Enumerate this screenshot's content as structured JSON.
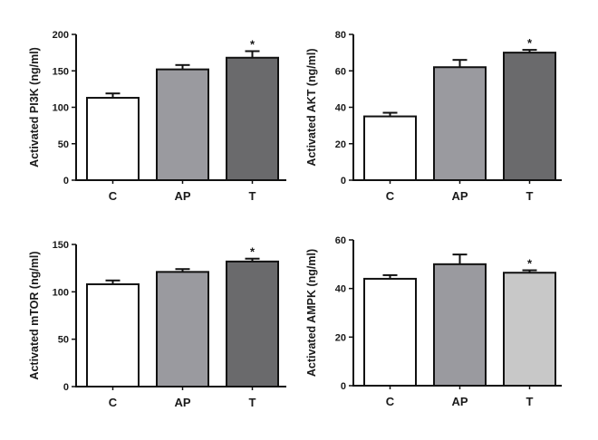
{
  "chart_data": [
    {
      "type": "bar",
      "ylabel": "Activated PI3K (ng/ml)",
      "categories": [
        "C",
        "AP",
        "T"
      ],
      "values": [
        113,
        152,
        168
      ],
      "errors": [
        6,
        6,
        9
      ],
      "significance": [
        "",
        "",
        "*"
      ],
      "colors": [
        "#ffffff",
        "#9a9a9f",
        "#6a6a6c"
      ],
      "ylim": [
        0,
        200
      ],
      "yticks": [
        "0",
        "50",
        "100",
        "150",
        "200"
      ]
    },
    {
      "type": "bar",
      "ylabel": "Activated AKT (ng/ml)",
      "categories": [
        "C",
        "AP",
        "T"
      ],
      "values": [
        35,
        62,
        70
      ],
      "errors": [
        2,
        4,
        1.5
      ],
      "significance": [
        "",
        "",
        "*"
      ],
      "colors": [
        "#ffffff",
        "#9a9a9f",
        "#6a6a6c"
      ],
      "ylim": [
        0,
        80
      ],
      "yticks": [
        "0",
        "20",
        "40",
        "60",
        "80"
      ]
    },
    {
      "type": "bar",
      "ylabel": "Activated mTOR (ng/ml)",
      "categories": [
        "C",
        "AP",
        "T"
      ],
      "values": [
        108,
        121,
        132
      ],
      "errors": [
        4,
        3,
        3
      ],
      "significance": [
        "",
        "",
        "*"
      ],
      "colors": [
        "#ffffff",
        "#9a9a9f",
        "#6a6a6c"
      ],
      "ylim": [
        0,
        150
      ],
      "yticks": [
        "0",
        "50",
        "100",
        "150"
      ]
    },
    {
      "type": "bar",
      "ylabel": "Activated AMPK (ng/ml)",
      "categories": [
        "C",
        "AP",
        "T"
      ],
      "values": [
        44,
        50,
        46.5
      ],
      "errors": [
        1.5,
        4,
        1
      ],
      "significance": [
        "",
        "",
        "*"
      ],
      "colors": [
        "#ffffff",
        "#9a9a9f",
        "#c8c8c8"
      ],
      "ylim": [
        0,
        60
      ],
      "yticks": [
        "0",
        "20",
        "40",
        "60"
      ]
    }
  ]
}
